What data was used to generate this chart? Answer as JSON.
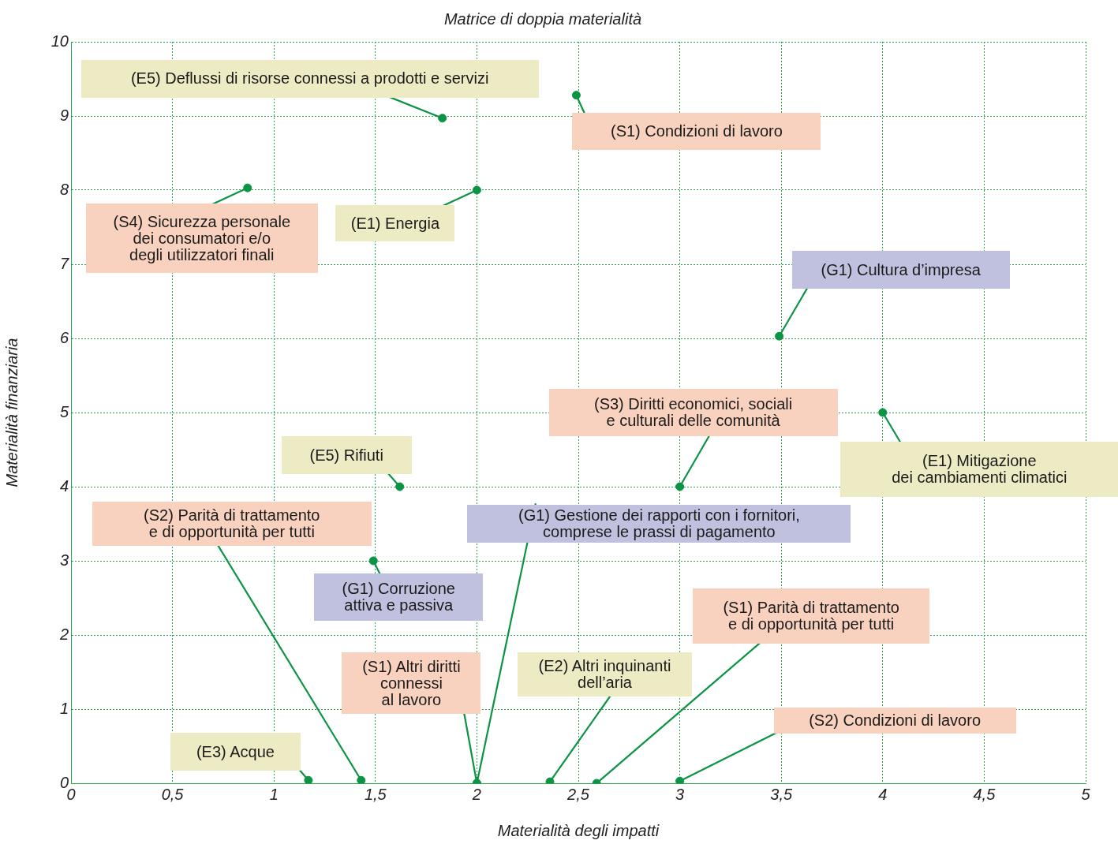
{
  "chart_data": {
    "type": "scatter",
    "title": "Matrice di doppia materialità",
    "xlabel": "Materialità degli impatti",
    "ylabel": "Materialità finanziaria",
    "x": [
      1.83,
      2.49,
      0.87,
      2,
      3.49,
      3,
      4,
      1.62,
      1.43,
      2,
      1.49,
      2,
      2.36,
      2.59,
      3,
      1.17
    ],
    "series": [
      {
        "color": "#0c9444",
        "values": [
          8.97,
          9.28,
          8.03,
          8,
          6.03,
          4,
          5,
          4,
          0.04,
          0,
          3,
          0,
          0.02,
          0,
          0.03,
          0.04
        ]
      }
    ],
    "annotations": [
      {
        "text": "(E5) Deflussi di risorse connessi a prodotti e servizi",
        "x": 1.83,
        "y": 8.97
      },
      {
        "text": "(S1) Condizioni di lavoro",
        "x": 2.49,
        "y": 9.28
      },
      {
        "text": "(S4) Sicurezza personale\ndei consumatori e/o\ndegli utilizzatori finali",
        "x": 0.87,
        "y": 8.03
      },
      {
        "text": "(E1) Energia",
        "x": 2,
        "y": 8
      },
      {
        "text": "(G1) Cultura d’impresa",
        "x": 3.49,
        "y": 6.03
      },
      {
        "text": "(S3) Diritti economici, sociali\ne culturali delle comunità",
        "x": 3,
        "y": 4
      },
      {
        "text": "(E1) Mitigazione\ndei cambiamenti climatici",
        "x": 4,
        "y": 5
      },
      {
        "text": "(E5) Rifiuti",
        "x": 1.62,
        "y": 4
      },
      {
        "text": "(S2) Parità di trattamento\ne di opportunità per tutti",
        "x": 1.43,
        "y": 0.04
      },
      {
        "text": "(G1) Gestione dei rapporti con i fornitori,\ncomprese le prassi di pagamento",
        "x": 2,
        "y": 0
      },
      {
        "text": "(G1) Corruzione\nattiva e passiva",
        "x": 1.49,
        "y": 3
      },
      {
        "text": "(S1) Altri diritti\nconnessi\nal lavoro",
        "x": 2,
        "y": 0
      },
      {
        "text": "(E2) Altri inquinanti\ndell’aria",
        "x": 2.36,
        "y": 0.02
      },
      {
        "text": "(S1) Parità di trattamento\ne di opportunità per tutti",
        "x": 2.59,
        "y": 0
      },
      {
        "text": "(S2) Condizioni di lavoro",
        "x": 3,
        "y": 0.03
      },
      {
        "text": "(E3) Acque",
        "x": 1.17,
        "y": 0.04
      }
    ],
    "xlim": [
      0,
      5
    ],
    "xticks": [
      0,
      {
        "value": 0.5,
        "label": "0,5"
      },
      1,
      {
        "value": 1.5,
        "label": "1,5"
      },
      2,
      {
        "value": 2.5,
        "label": "2,5"
      },
      3,
      {
        "value": 3.5,
        "label": "3,5"
      },
      4,
      {
        "value": 4.5,
        "label": "4,5"
      },
      5
    ],
    "ylim": [
      0,
      10
    ],
    "yticks": [
      0,
      1,
      2,
      3,
      4,
      5,
      6,
      7,
      8,
      9,
      10
    ],
    "grid": true,
    "marker": "circle"
  }
}
